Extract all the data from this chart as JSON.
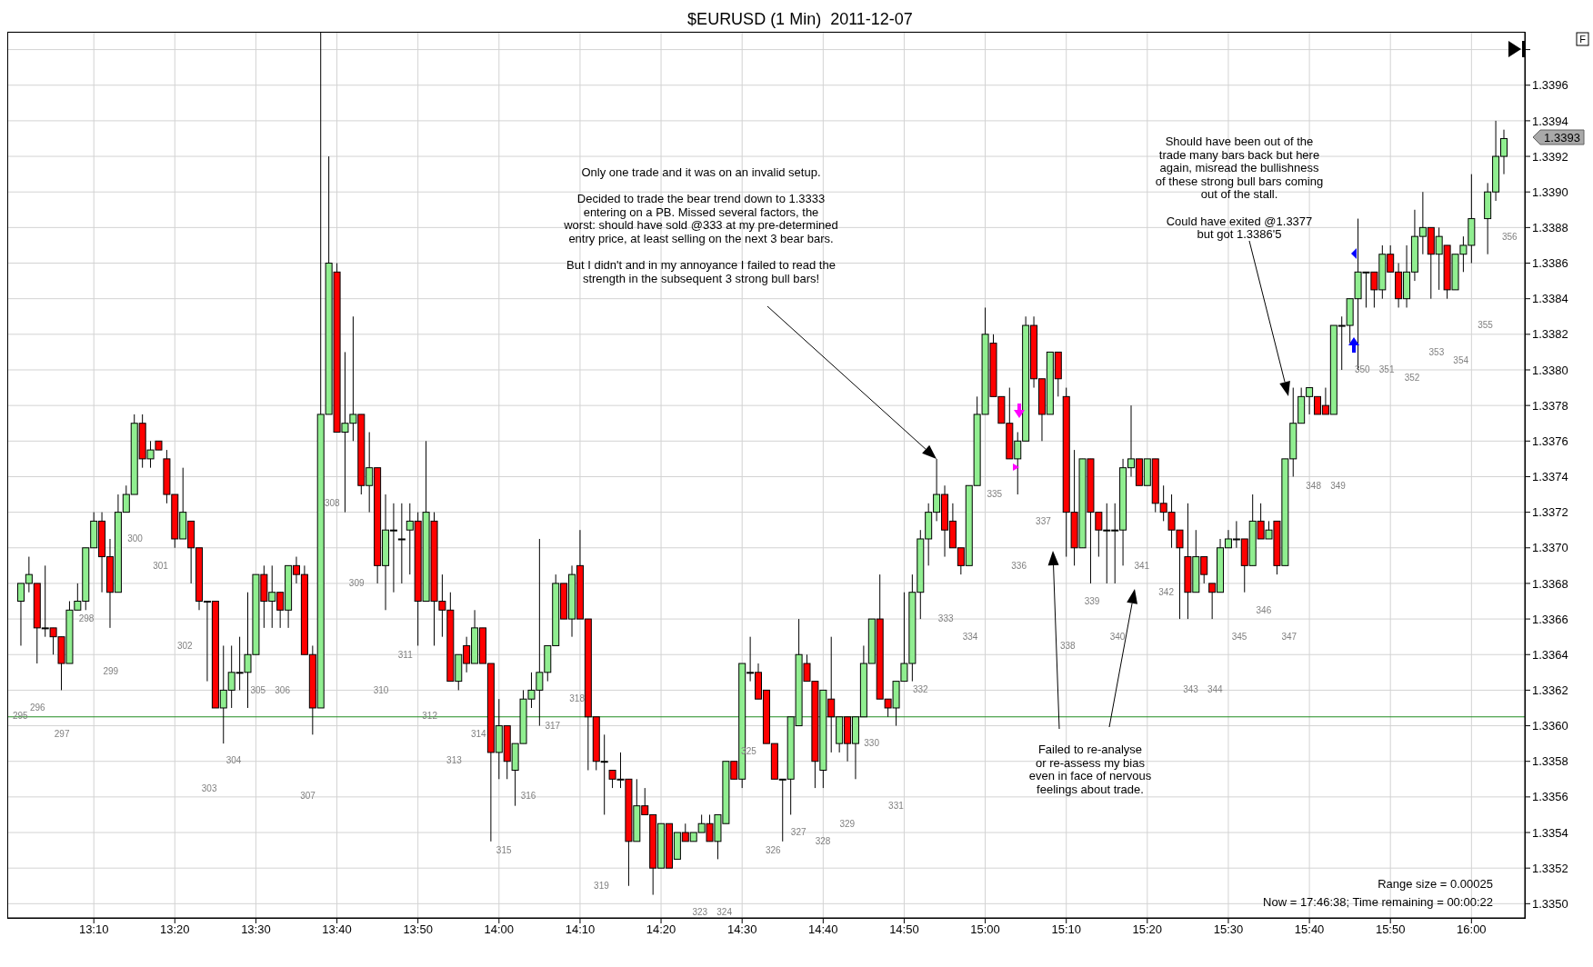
{
  "chart_data": {
    "type": "candlestick",
    "title": "$EURUSD (1 Min)  2011-12-07",
    "x": [
      13.0167,
      13.0333,
      13.05,
      13.0667,
      13.0833,
      13.1,
      13.1167,
      13.1333,
      13.15,
      13.1667,
      13.1833,
      13.2,
      13.2167,
      13.2333,
      13.25,
      13.2667,
      13.2833,
      13.3,
      13.3167,
      13.3333,
      13.35,
      13.3667,
      13.3833,
      13.4,
      13.4167,
      13.4333,
      13.45,
      13.4667,
      13.4833,
      13.5,
      13.5167,
      13.5333,
      13.55,
      13.5667,
      13.5833,
      13.6,
      13.6167,
      13.6333,
      13.65,
      13.6667,
      13.6833,
      13.7,
      13.7167,
      13.7333,
      13.75,
      13.7667,
      13.7833,
      13.8,
      13.8167,
      13.8333,
      13.85,
      13.8667,
      13.8833,
      13.9,
      13.9167,
      13.9333,
      13.95,
      13.9667,
      13.9833,
      14,
      14.0167,
      14.0333,
      14.05,
      14.0667,
      14.0833,
      14.1,
      14.1167,
      14.1333,
      14.15,
      14.1667,
      14.1833,
      14.2,
      14.2167,
      14.2333,
      14.25,
      14.2667,
      14.2833,
      14.3,
      14.3167,
      14.3333,
      14.35,
      14.3667,
      14.3833,
      14.4,
      14.4167,
      14.4333,
      14.45,
      14.4667,
      14.4833,
      14.5,
      14.5167,
      14.5333,
      14.55,
      14.5667,
      14.5833,
      14.6,
      14.6167,
      14.6333,
      14.65,
      14.6667,
      14.6833,
      14.7,
      14.7167,
      14.7333,
      14.75,
      14.7667,
      14.7833,
      14.8,
      14.8167,
      14.8333,
      14.85,
      14.8667,
      14.8833,
      14.9,
      14.9167,
      14.9333,
      14.95,
      14.9667,
      14.9833,
      15,
      15.0167,
      15.0333,
      15.05,
      15.0667,
      15.0833,
      15.1,
      15.1167,
      15.1333,
      15.15,
      15.1667,
      15.1833,
      15.2,
      15.2167,
      15.2333,
      15.25,
      15.2667,
      15.2833,
      15.3,
      15.3167,
      15.3333,
      15.35,
      15.3667,
      15.3833,
      15.4,
      15.4167,
      15.4333,
      15.45,
      15.4667,
      15.4833,
      15.5,
      15.5167,
      15.5333,
      15.55,
      15.5667,
      15.5833,
      15.6,
      15.6167,
      15.6333,
      15.65,
      15.6667,
      15.6833,
      15.7,
      15.7167,
      15.7333,
      15.75,
      15.7667,
      15.7833,
      15.8,
      15.8167,
      15.8333,
      15.85,
      15.8667,
      15.8833,
      15.9,
      15.9167,
      15.9333,
      15.95,
      15.9667,
      15.9833,
      16,
      16.0333,
      16.05,
      16.0667
    ],
    "ohlc": [
      [
        1.3367,
        1.3368,
        1.33645,
        1.3368
      ],
      [
        1.3368,
        1.33695,
        1.33675,
        1.33685
      ],
      [
        1.3368,
        1.3368,
        1.33635,
        1.33655
      ],
      [
        1.33655,
        1.3369,
        1.3365,
        1.33655
      ],
      [
        1.33655,
        1.33655,
        1.3364,
        1.3365
      ],
      [
        1.3365,
        1.3365,
        1.3362,
        1.33635
      ],
      [
        1.33635,
        1.3367,
        1.33635,
        1.33665
      ],
      [
        1.33665,
        1.3368,
        1.33665,
        1.3367
      ],
      [
        1.3367,
        1.337,
        1.33665,
        1.337
      ],
      [
        1.337,
        1.3372,
        1.337,
        1.33715
      ],
      [
        1.33715,
        1.3372,
        1.33675,
        1.33695
      ],
      [
        1.33695,
        1.33705,
        1.33655,
        1.33675
      ],
      [
        1.33675,
        1.3373,
        1.33675,
        1.3372
      ],
      [
        1.3372,
        1.33735,
        1.3372,
        1.3373
      ],
      [
        1.3373,
        1.33775,
        1.3373,
        1.3377
      ],
      [
        1.3377,
        1.33775,
        1.33745,
        1.3375
      ],
      [
        1.3375,
        1.3376,
        1.33745,
        1.33755
      ],
      [
        1.3376,
        1.3376,
        1.33755,
        1.33755
      ],
      [
        1.3375,
        1.33755,
        1.33725,
        1.3373
      ],
      [
        1.3373,
        1.3373,
        1.337,
        1.33705
      ],
      [
        1.33705,
        1.33745,
        1.33705,
        1.3372
      ],
      [
        1.33715,
        1.33715,
        1.3368,
        1.337
      ],
      [
        1.337,
        1.337,
        1.33665,
        1.3367
      ],
      [
        1.3367,
        1.3367,
        1.33625,
        1.3367
      ],
      [
        1.3367,
        1.3367,
        1.3361,
        1.3361
      ],
      [
        1.3361,
        1.33645,
        1.3359,
        1.3362
      ],
      [
        1.3362,
        1.33645,
        1.3361,
        1.3363
      ],
      [
        1.3363,
        1.3365,
        1.3362,
        1.3363
      ],
      [
        1.3363,
        1.33675,
        1.3361,
        1.3364
      ],
      [
        1.3364,
        1.33685,
        1.3364,
        1.33685
      ],
      [
        1.33685,
        1.3369,
        1.33655,
        1.3367
      ],
      [
        1.3367,
        1.3369,
        1.33655,
        1.33675
      ],
      [
        1.33675,
        1.33675,
        1.33655,
        1.33665
      ],
      [
        1.33665,
        1.3369,
        1.33655,
        1.3369
      ],
      [
        1.3369,
        1.33695,
        1.3368,
        1.33685
      ],
      [
        1.33685,
        1.3369,
        1.3364,
        1.3364
      ],
      [
        1.3364,
        1.33645,
        1.33595,
        1.3361
      ],
      [
        1.3361,
        1.3399,
        1.3361,
        1.33775
      ],
      [
        1.33775,
        1.3392,
        1.33775,
        1.3386
      ],
      [
        1.33855,
        1.3386,
        1.33765,
        1.33765
      ],
      [
        1.33765,
        1.3381,
        1.3372,
        1.3377
      ],
      [
        1.3377,
        1.3383,
        1.3376,
        1.33775
      ],
      [
        1.33775,
        1.33775,
        1.3373,
        1.33735
      ],
      [
        1.33735,
        1.33765,
        1.3372,
        1.33745
      ],
      [
        1.33745,
        1.33745,
        1.3368,
        1.3369
      ],
      [
        1.3369,
        1.3373,
        1.33665,
        1.3371
      ],
      [
        1.3371,
        1.33725,
        1.33675,
        1.3371
      ],
      [
        1.33705,
        1.33725,
        1.3368,
        1.33705
      ],
      [
        1.3371,
        1.33725,
        1.33685,
        1.33715
      ],
      [
        1.33715,
        1.3372,
        1.33645,
        1.3367
      ],
      [
        1.3367,
        1.3376,
        1.3367,
        1.3372
      ],
      [
        1.33715,
        1.3372,
        1.33645,
        1.3367
      ],
      [
        1.3367,
        1.33685,
        1.3365,
        1.33665
      ],
      [
        1.33665,
        1.33675,
        1.33625,
        1.33625
      ],
      [
        1.33625,
        1.3364,
        1.3362,
        1.3364
      ],
      [
        1.33645,
        1.3365,
        1.3363,
        1.33635
      ],
      [
        1.33635,
        1.33665,
        1.33635,
        1.33655
      ],
      [
        1.33655,
        1.33655,
        1.33635,
        1.33635
      ],
      [
        1.33635,
        1.33635,
        1.33535,
        1.33585
      ],
      [
        1.33585,
        1.33615,
        1.3357,
        1.336
      ],
      [
        1.336,
        1.336,
        1.3357,
        1.3358
      ],
      [
        1.33575,
        1.3359,
        1.33555,
        1.3359
      ],
      [
        1.3359,
        1.3362,
        1.3359,
        1.33615
      ],
      [
        1.33615,
        1.3363,
        1.3361,
        1.3362
      ],
      [
        1.3362,
        1.33705,
        1.336,
        1.3363
      ],
      [
        1.3363,
        1.33645,
        1.33625,
        1.33645
      ],
      [
        1.33645,
        1.33685,
        1.33645,
        1.3368
      ],
      [
        1.3368,
        1.3368,
        1.3366,
        1.3366
      ],
      [
        1.3366,
        1.3369,
        1.3365,
        1.33685
      ],
      [
        1.3369,
        1.3371,
        1.3366,
        1.3366
      ],
      [
        1.3366,
        1.3366,
        1.33575,
        1.33605
      ],
      [
        1.33605,
        1.33605,
        1.33575,
        1.3358
      ],
      [
        1.3358,
        1.33595,
        1.3355,
        1.3358
      ],
      [
        1.33575,
        1.33575,
        1.33565,
        1.3357
      ],
      [
        1.3357,
        1.33585,
        1.33565,
        1.3357
      ],
      [
        1.3357,
        1.3357,
        1.3351,
        1.33535
      ],
      [
        1.33535,
        1.3357,
        1.33535,
        1.33555
      ],
      [
        1.33555,
        1.33565,
        1.3355,
        1.3355
      ],
      [
        1.3355,
        1.3355,
        1.33505,
        1.3352
      ],
      [
        1.3352,
        1.33545,
        1.3352,
        1.33545
      ],
      [
        1.33545,
        1.33545,
        1.3352,
        1.3352
      ],
      [
        1.33525,
        1.3354,
        1.33525,
        1.3354
      ],
      [
        1.3354,
        1.33545,
        1.33535,
        1.33535
      ],
      [
        1.33535,
        1.3354,
        1.33535,
        1.3354
      ],
      [
        1.3354,
        1.3355,
        1.3354,
        1.33545
      ],
      [
        1.33545,
        1.3355,
        1.33535,
        1.33535
      ],
      [
        1.33535,
        1.3355,
        1.33525,
        1.3355
      ],
      [
        1.33545,
        1.3358,
        1.33545,
        1.3358
      ],
      [
        1.3358,
        1.3358,
        1.3357,
        1.3357
      ],
      [
        1.3357,
        1.33635,
        1.33565,
        1.33635
      ],
      [
        1.3363,
        1.3365,
        1.33625,
        1.3363
      ],
      [
        1.3363,
        1.33635,
        1.33615,
        1.33615
      ],
      [
        1.3362,
        1.3362,
        1.3359,
        1.3359
      ],
      [
        1.3359,
        1.3359,
        1.3357,
        1.3357
      ],
      [
        1.3357,
        1.3357,
        1.33535,
        1.3357
      ],
      [
        1.3357,
        1.33605,
        1.3355,
        1.33605
      ],
      [
        1.336,
        1.3366,
        1.336,
        1.3364
      ],
      [
        1.33635,
        1.3364,
        1.33625,
        1.33625
      ],
      [
        1.33625,
        1.33625,
        1.33565,
        1.3358
      ],
      [
        1.33575,
        1.3362,
        1.33565,
        1.3362
      ],
      [
        1.33615,
        1.3365,
        1.33585,
        1.33605
      ],
      [
        1.3359,
        1.33605,
        1.33585,
        1.33605
      ],
      [
        1.33605,
        1.33605,
        1.3358,
        1.3359
      ],
      [
        1.3359,
        1.33605,
        1.3357,
        1.33605
      ],
      [
        1.33605,
        1.33645,
        1.33605,
        1.33635
      ],
      [
        1.33635,
        1.3366,
        1.33635,
        1.3366
      ],
      [
        1.3366,
        1.33685,
        1.33615,
        1.33615
      ],
      [
        1.33615,
        1.33615,
        1.33605,
        1.3361
      ],
      [
        1.3361,
        1.33625,
        1.336,
        1.33625
      ],
      [
        1.33625,
        1.33675,
        1.33625,
        1.33635
      ],
      [
        1.33635,
        1.33685,
        1.33625,
        1.33675
      ],
      [
        1.33675,
        1.3371,
        1.3366,
        1.33705
      ],
      [
        1.33705,
        1.33725,
        1.3369,
        1.3372
      ],
      [
        1.3372,
        1.3375,
        1.33715,
        1.3373
      ],
      [
        1.3373,
        1.33735,
        1.33695,
        1.3371
      ],
      [
        1.33715,
        1.33725,
        1.337,
        1.337
      ],
      [
        1.337,
        1.337,
        1.33685,
        1.3369
      ],
      [
        1.3369,
        1.33735,
        1.3369,
        1.33735
      ],
      [
        1.33735,
        1.33785,
        1.33735,
        1.33775
      ],
      [
        1.33775,
        1.33835,
        1.33775,
        1.3382
      ],
      [
        1.33815,
        1.3382,
        1.33785,
        1.33785
      ],
      [
        1.33785,
        1.33785,
        1.3377,
        1.3377
      ],
      [
        1.3377,
        1.3379,
        1.3375,
        1.3375
      ],
      [
        1.3375,
        1.33765,
        1.3373,
        1.3376
      ],
      [
        1.3376,
        1.3383,
        1.3376,
        1.33825
      ],
      [
        1.33825,
        1.3383,
        1.3379,
        1.33795
      ],
      [
        1.33795,
        1.33795,
        1.3376,
        1.33775
      ],
      [
        1.33775,
        1.3381,
        1.33775,
        1.3381
      ],
      [
        1.3381,
        1.3381,
        1.33785,
        1.33795
      ],
      [
        1.33785,
        1.3379,
        1.33695,
        1.3372
      ],
      [
        1.3372,
        1.33755,
        1.3369,
        1.337
      ],
      [
        1.337,
        1.3375,
        1.337,
        1.3375
      ],
      [
        1.3375,
        1.3375,
        1.3368,
        1.3372
      ],
      [
        1.3372,
        1.3372,
        1.33695,
        1.3371
      ],
      [
        1.3371,
        1.33725,
        1.3368,
        1.3371
      ],
      [
        1.3371,
        1.33725,
        1.3368,
        1.3371
      ],
      [
        1.3371,
        1.3375,
        1.3369,
        1.33745
      ],
      [
        1.33745,
        1.3378,
        1.3374,
        1.3375
      ],
      [
        1.3375,
        1.3375,
        1.33735,
        1.33735
      ],
      [
        1.33735,
        1.3375,
        1.33735,
        1.3375
      ],
      [
        1.3375,
        1.3375,
        1.3372,
        1.33725
      ],
      [
        1.33725,
        1.33735,
        1.33715,
        1.3372
      ],
      [
        1.3372,
        1.3373,
        1.337,
        1.3371
      ],
      [
        1.3371,
        1.3371,
        1.3366,
        1.337
      ],
      [
        1.33695,
        1.33725,
        1.3366,
        1.33675
      ],
      [
        1.33675,
        1.3371,
        1.33675,
        1.33695
      ],
      [
        1.33695,
        1.33695,
        1.3368,
        1.33685
      ],
      [
        1.3368,
        1.3368,
        1.3366,
        1.33675
      ],
      [
        1.33675,
        1.33705,
        1.33675,
        1.337
      ],
      [
        1.337,
        1.3371,
        1.337,
        1.33705
      ],
      [
        1.33705,
        1.33715,
        1.337,
        1.33705
      ],
      [
        1.33705,
        1.33705,
        1.33675,
        1.3369
      ],
      [
        1.3369,
        1.3373,
        1.3369,
        1.33715
      ],
      [
        1.33715,
        1.33725,
        1.33705,
        1.33705
      ],
      [
        1.33705,
        1.33715,
        1.33705,
        1.3371
      ],
      [
        1.33715,
        1.33715,
        1.33685,
        1.3369
      ],
      [
        1.3369,
        1.3375,
        1.3369,
        1.3375
      ],
      [
        1.3375,
        1.3379,
        1.3374,
        1.3377
      ],
      [
        1.3377,
        1.3379,
        1.3377,
        1.33785
      ],
      [
        1.33785,
        1.3379,
        1.33775,
        1.3379
      ],
      [
        1.33785,
        1.33785,
        1.33775,
        1.33775
      ],
      [
        1.3378,
        1.3379,
        1.33775,
        1.33775
      ],
      [
        1.33775,
        1.33825,
        1.33775,
        1.33825
      ],
      [
        1.33825,
        1.3383,
        1.338,
        1.33825
      ],
      [
        1.33825,
        1.3384,
        1.33815,
        1.3384
      ],
      [
        1.3384,
        1.33885,
        1.338,
        1.33855
      ],
      [
        1.33855,
        1.33855,
        1.33835,
        1.33855
      ],
      [
        1.33855,
        1.33855,
        1.33835,
        1.33845
      ],
      [
        1.33845,
        1.3387,
        1.3384,
        1.33865
      ],
      [
        1.33865,
        1.3387,
        1.33855,
        1.33855
      ],
      [
        1.33855,
        1.3386,
        1.33835,
        1.3384
      ],
      [
        1.3384,
        1.3387,
        1.33835,
        1.33855
      ],
      [
        1.33855,
        1.3389,
        1.3385,
        1.33875
      ],
      [
        1.33875,
        1.339,
        1.33865,
        1.3388
      ],
      [
        1.3388,
        1.3388,
        1.3384,
        1.33865
      ],
      [
        1.33865,
        1.3388,
        1.33845,
        1.33875
      ],
      [
        1.3387,
        1.3387,
        1.3384,
        1.33845
      ],
      [
        1.33845,
        1.33865,
        1.33845,
        1.33865
      ],
      [
        1.33865,
        1.33875,
        1.33855,
        1.3387
      ],
      [
        1.3387,
        1.3391,
        1.3386,
        1.33885
      ],
      [
        1.33885,
        1.33905,
        1.33865,
        1.339
      ],
      [
        1.339,
        1.3394,
        1.33895,
        1.3392
      ],
      [
        1.3392,
        1.33935,
        1.3391,
        1.3393
      ]
    ],
    "xlim": [
      12.9887,
      16.1097
    ],
    "xticks": [
      {
        "value": 13.1667,
        "label": "13:10"
      },
      {
        "value": 13.3333,
        "label": "13:20"
      },
      {
        "value": 13.5,
        "label": "13:30"
      },
      {
        "value": 13.6667,
        "label": "13:40"
      },
      {
        "value": 13.8333,
        "label": "13:50"
      },
      {
        "value": 14,
        "label": "14:00"
      },
      {
        "value": 14.1667,
        "label": "14:10"
      },
      {
        "value": 14.3333,
        "label": "14:20"
      },
      {
        "value": 14.5,
        "label": "14:30"
      },
      {
        "value": 14.6667,
        "label": "14:40"
      },
      {
        "value": 14.8333,
        "label": "14:50"
      },
      {
        "value": 15,
        "label": "15:00"
      },
      {
        "value": 15.1667,
        "label": "15:10"
      },
      {
        "value": 15.3333,
        "label": "15:20"
      },
      {
        "value": 15.5,
        "label": "15:30"
      },
      {
        "value": 15.6667,
        "label": "15:40"
      },
      {
        "value": 15.8333,
        "label": "15:50"
      },
      {
        "value": 16,
        "label": "16:00"
      }
    ],
    "ylim": [
      1.33492,
      1.3399
    ],
    "yticks": [
      {
        "value": 1.335,
        "label": "1.3350"
      },
      1.3352,
      1.3354,
      1.3356,
      1.3358,
      {
        "value": 1.336,
        "label": "1.3360"
      },
      1.3362,
      1.3364,
      1.3366,
      1.3368,
      {
        "value": 1.337,
        "label": "1.3370"
      },
      1.3372,
      1.3374,
      1.3376,
      1.3378,
      {
        "value": 1.338,
        "label": "1.3380"
      },
      1.3382,
      1.3384,
      1.3386,
      1.3388,
      {
        "value": 1.339,
        "label": "1.3390"
      },
      1.3392,
      1.3394,
      1.3396,
      {
        "value": 1.3398,
        "label": null
      }
    ],
    "grid": true,
    "ref_lines": [
      {
        "axis": "y",
        "value": 1.33605,
        "color": "#228b22"
      }
    ],
    "annotations": [
      "Only one trade and it was on an invalid setup.\n\nDecided to trade the bear trend down to 1.3333\nentering on a PB. Missed several factors, the\nworst: should have sold @333 at my pre-determined\nentry price, at least selling on the next 3 bear bars.\n\nBut I didn't and in my annoyance I failed to read the\nstrength in the subsequent 3 strong bull bars!",
      "Failed to re-analyse\nor re-assess my bias\neven in face of nervous\nfeelings about trade.",
      "Should have been out of the\ntrade many bars back but here\nagain, misread the bullishness\nof these strong bull bars coming\nout of the stall.\n\nCould have exited @1.3377\nbut got 1.3386'5",
      "Range size = 0.00025",
      "Now = 17:46:38; Time remaining = 00:00:22",
      "1.3393",
      "F",
      "295",
      "296",
      "297",
      "298",
      "299",
      "300",
      "301",
      "302",
      "303",
      "304",
      "305",
      "306",
      "307",
      "308",
      "309",
      "310",
      "311",
      "312",
      "313",
      "314",
      "315",
      "316",
      "317",
      "318",
      "319",
      "323",
      "324",
      "325",
      "326",
      "327",
      "328",
      "329",
      "330",
      "331",
      "332",
      "333",
      "334",
      "335",
      "336",
      "337",
      "338",
      "339",
      "340",
      "341",
      "342",
      "343",
      "344",
      "345",
      "346",
      "347",
      "348",
      "349",
      "350",
      "351",
      "352",
      "353",
      "354",
      "355",
      "356"
    ]
  }
}
